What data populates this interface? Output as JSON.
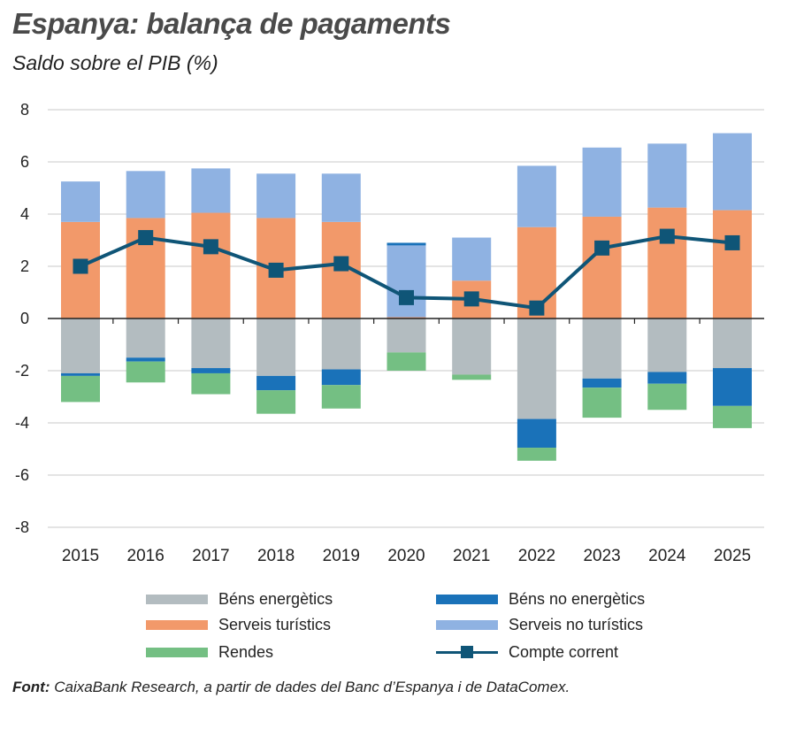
{
  "title": "Espanya: balança de pagaments",
  "subtitle": "Saldo sobre el PIB (%)",
  "source_label": "Font:",
  "source_text": " CaixaBank Research, a partir de dades del Banc d’Espanya i de DataComex.",
  "colors": {
    "bens_energetics": "#b3bcc0",
    "bens_no_energetics": "#1a72b9",
    "serveis_turistics": "#f2996a",
    "serveis_no_turistics": "#8fb2e2",
    "rendes": "#74bf83",
    "compte_corrent": "#0f5577"
  },
  "chart_data": {
    "type": "bar",
    "stacked": true,
    "categories": [
      "2015",
      "2016",
      "2017",
      "2018",
      "2019",
      "2020",
      "2021",
      "2022",
      "2023",
      "2024",
      "2025"
    ],
    "ylim": [
      -8,
      8
    ],
    "yticks": [
      8,
      6,
      4,
      2,
      0,
      -2,
      -4,
      -6,
      -8
    ],
    "ytick_labels": [
      "8",
      "6",
      "4",
      "2",
      "0",
      "-2",
      "-4",
      "-6",
      "-8"
    ],
    "grid": true,
    "legend_position": "bottom",
    "series": [
      {
        "key": "serveis_turistics",
        "name": "Serveis turístics",
        "kind": "bar",
        "values": [
          3.7,
          3.85,
          4.05,
          3.85,
          3.7,
          0.05,
          1.45,
          3.5,
          3.9,
          4.25,
          4.15
        ]
      },
      {
        "key": "serveis_no_turistics",
        "name": "Serveis no turístics",
        "kind": "bar",
        "values": [
          1.55,
          1.8,
          1.7,
          1.7,
          1.85,
          2.75,
          1.65,
          2.35,
          2.65,
          2.45,
          2.95
        ]
      },
      {
        "key": "bens_energetics",
        "name": "Béns energètics",
        "kind": "bar",
        "values": [
          -2.1,
          -1.5,
          -1.9,
          -2.2,
          -1.95,
          -1.3,
          -2.15,
          -3.85,
          -2.3,
          -2.05,
          -1.9
        ]
      },
      {
        "key": "bens_no_energetics",
        "name": "Béns no energètics",
        "kind": "bar",
        "values": [
          -0.1,
          -0.15,
          -0.2,
          -0.55,
          -0.6,
          0.1,
          0.0,
          -1.1,
          -0.35,
          -0.45,
          -1.45
        ]
      },
      {
        "key": "rendes",
        "name": "Rendes",
        "kind": "bar",
        "values": [
          -1.0,
          -0.8,
          -0.8,
          -0.9,
          -0.9,
          -0.7,
          -0.2,
          -0.5,
          -1.15,
          -1.0,
          -0.85
        ]
      },
      {
        "key": "compte_corrent",
        "name": "Compte corrent",
        "kind": "line",
        "values": [
          2.0,
          3.1,
          2.75,
          1.85,
          2.1,
          0.8,
          0.75,
          0.4,
          2.7,
          3.15,
          2.9
        ]
      }
    ]
  },
  "legend": [
    {
      "key": "bens_energetics",
      "label": "Béns energètics",
      "kind": "bar"
    },
    {
      "key": "bens_no_energetics",
      "label": "Béns no energètics",
      "kind": "bar"
    },
    {
      "key": "serveis_turistics",
      "label": "Serveis turístics",
      "kind": "bar"
    },
    {
      "key": "serveis_no_turistics",
      "label": "Serveis no turístics",
      "kind": "bar"
    },
    {
      "key": "rendes",
      "label": "Rendes",
      "kind": "bar"
    },
    {
      "key": "compte_corrent",
      "label": "Compte corrent",
      "kind": "line"
    }
  ]
}
